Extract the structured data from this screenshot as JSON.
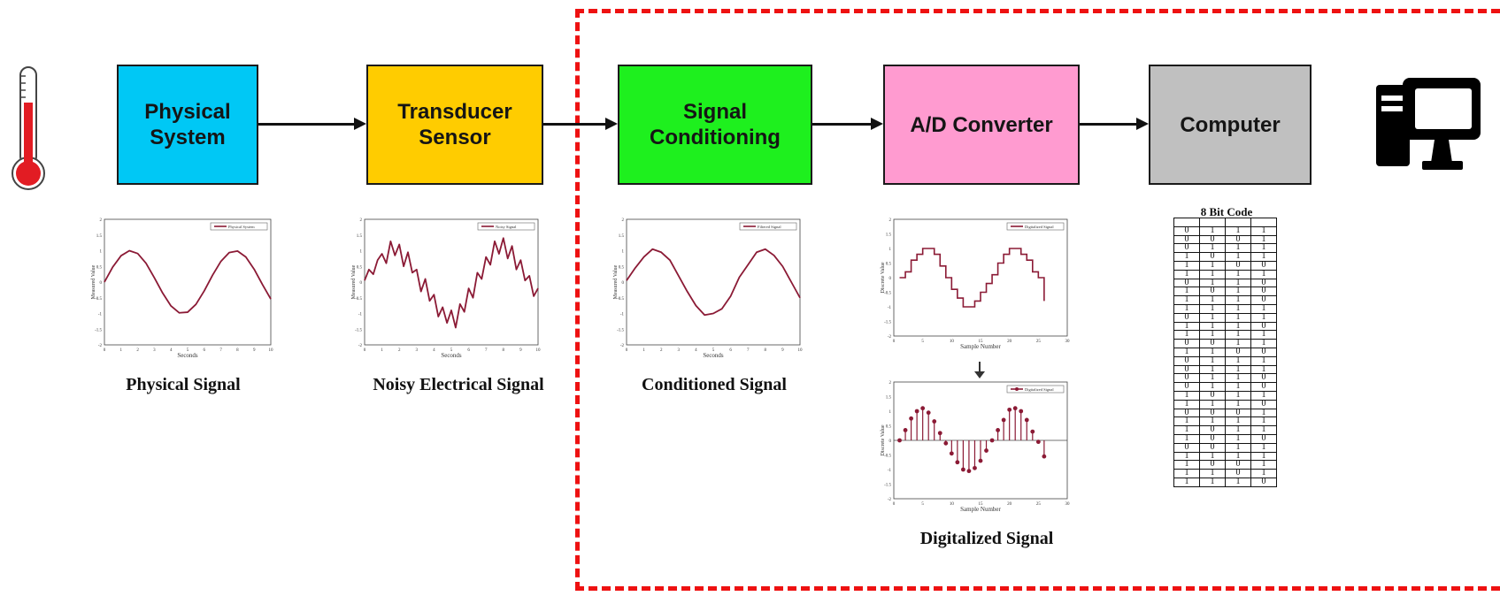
{
  "blocks": {
    "physical_system": "Physical\nSystem",
    "transducer_sensor": "Transducer\nSensor",
    "signal_conditioning": "Signal\nConditioning",
    "ad_converter": "A/D Converter",
    "computer": "Computer"
  },
  "colors": {
    "physical_system": "#00c8f5",
    "transducer_sensor": "#ffcc00",
    "signal_conditioning": "#1ef01e",
    "ad_converter": "#ff9bd0",
    "computer": "#c0c0c0",
    "signal": "#8b1a35",
    "region_border": "#ee1111"
  },
  "captions": {
    "physical": "Physical Signal",
    "noisy": "Noisy Electrical Signal",
    "conditioned": "Conditioned Signal",
    "digitalized": "Digitalized Signal"
  },
  "icons": {
    "left": "thermometer-icon",
    "right": "desktop-computer-icon"
  },
  "chart_data": [
    {
      "type": "line",
      "legend": "Physical System",
      "xlabel": "Seconds",
      "ylabel": "Measured Value",
      "xlim": [
        0,
        10
      ],
      "ylim": [
        -2,
        2
      ],
      "xticks": [
        "0",
        "1",
        "2",
        "3",
        "4",
        "5",
        "6",
        "7",
        "8",
        "9",
        "10"
      ],
      "yticks": [
        "2",
        "1.5",
        "1",
        "0.5",
        "0",
        "-0.5",
        "-1",
        "-1.5",
        "-2"
      ],
      "x": [
        0,
        0.5,
        1,
        1.5,
        2,
        2.5,
        3,
        3.5,
        4,
        4.5,
        5,
        5.5,
        6,
        6.5,
        7,
        7.5,
        8,
        8.5,
        9,
        9.5,
        10
      ],
      "y": [
        0,
        0.48,
        0.84,
        1,
        0.91,
        0.6,
        0.14,
        -0.35,
        -0.76,
        -0.98,
        -0.96,
        -0.71,
        -0.28,
        0.22,
        0.66,
        0.94,
        0.99,
        0.8,
        0.41,
        -0.08,
        -0.54
      ]
    },
    {
      "type": "line",
      "legend": "Noisy Signal",
      "xlabel": "Seconds",
      "ylabel": "Measured Value",
      "xlim": [
        0,
        10
      ],
      "ylim": [
        -2,
        2
      ],
      "xticks": [
        "0",
        "1",
        "2",
        "3",
        "4",
        "5",
        "6",
        "7",
        "8",
        "9",
        "10"
      ],
      "yticks": [
        "2",
        "1.5",
        "1",
        "0.5",
        "0",
        "-0.5",
        "-1",
        "-1.5",
        "-2"
      ],
      "x": [
        0,
        0.25,
        0.5,
        0.75,
        1,
        1.25,
        1.5,
        1.75,
        2,
        2.25,
        2.5,
        2.75,
        3,
        3.25,
        3.5,
        3.75,
        4,
        4.25,
        4.5,
        4.75,
        5,
        5.25,
        5.5,
        5.75,
        6,
        6.25,
        6.5,
        6.75,
        7,
        7.25,
        7.5,
        7.75,
        8,
        8.25,
        8.5,
        8.75,
        9,
        9.25,
        9.5,
        9.75,
        10
      ],
      "y": [
        0.05,
        0.4,
        0.25,
        0.7,
        0.9,
        0.6,
        1.3,
        0.85,
        1.2,
        0.5,
        0.95,
        0.3,
        0.4,
        -0.3,
        0.1,
        -0.6,
        -0.4,
        -1.1,
        -0.8,
        -1.3,
        -0.9,
        -1.45,
        -0.7,
        -0.95,
        -0.2,
        -0.5,
        0.3,
        0.1,
        0.8,
        0.55,
        1.3,
        0.9,
        1.4,
        0.75,
        1.15,
        0.4,
        0.7,
        0.05,
        0.2,
        -0.45,
        -0.2
      ]
    },
    {
      "type": "line",
      "legend": "Filtered Signal",
      "xlabel": "Seconds",
      "ylabel": "Measured Value",
      "xlim": [
        0,
        10
      ],
      "ylim": [
        -2,
        2
      ],
      "xticks": [
        "0",
        "1",
        "2",
        "3",
        "4",
        "5",
        "6",
        "7",
        "8",
        "9",
        "10"
      ],
      "yticks": [
        "2",
        "1.5",
        "1",
        "0.5",
        "0",
        "-0.5",
        "-1",
        "-1.5",
        "-2"
      ],
      "x": [
        0,
        0.5,
        1,
        1.5,
        2,
        2.5,
        3,
        3.5,
        4,
        4.5,
        5,
        5.5,
        6,
        6.5,
        7,
        7.5,
        8,
        8.5,
        9,
        9.5,
        10
      ],
      "y": [
        0.05,
        0.45,
        0.8,
        1.05,
        0.95,
        0.7,
        0.2,
        -0.3,
        -0.75,
        -1.05,
        -1.0,
        -0.85,
        -0.45,
        0.15,
        0.55,
        0.95,
        1.05,
        0.85,
        0.5,
        0.0,
        -0.5
      ]
    },
    {
      "type": "line",
      "legend": "Digitalized Signal",
      "xlabel": "Sample Number",
      "ylabel": "Discrete Value",
      "xlim": [
        0,
        30
      ],
      "ylim": [
        -2,
        2
      ],
      "xticks": [
        "0",
        "5",
        "10",
        "15",
        "20",
        "25",
        "30"
      ],
      "yticks": [
        "2",
        "1.5",
        "1",
        "0.5",
        "0",
        "-0.5",
        "-1",
        "-1.5",
        "-2"
      ],
      "x": [
        1,
        2,
        3,
        4,
        5,
        6,
        7,
        8,
        9,
        10,
        11,
        12,
        13,
        14,
        15,
        16,
        17,
        18,
        19,
        20,
        21,
        22,
        23,
        24,
        25,
        26
      ],
      "y": [
        0,
        0.2,
        0.6,
        0.8,
        1,
        1,
        0.8,
        0.4,
        0,
        -0.4,
        -0.7,
        -1,
        -1,
        -0.8,
        -0.5,
        -0.2,
        0.1,
        0.5,
        0.8,
        1,
        1,
        0.8,
        0.6,
        0.2,
        0,
        -0.8
      ]
    },
    {
      "type": "scatter",
      "legend": "Digitalized Signal",
      "xlabel": "Sample Number",
      "ylabel": "Discrete Value",
      "xlim": [
        0,
        30
      ],
      "ylim": [
        -2,
        2
      ],
      "xticks": [
        "0",
        "5",
        "10",
        "15",
        "20",
        "25",
        "30"
      ],
      "yticks": [
        "2",
        "1.5",
        "1",
        "0.5",
        "0",
        "-0.5",
        "-1",
        "-1.5",
        "-2"
      ],
      "x": [
        1,
        2,
        3,
        4,
        5,
        6,
        7,
        8,
        9,
        10,
        11,
        12,
        13,
        14,
        15,
        16,
        17,
        18,
        19,
        20,
        21,
        22,
        23,
        24,
        25,
        26
      ],
      "y": [
        0,
        0.35,
        0.75,
        1.0,
        1.1,
        0.95,
        0.65,
        0.25,
        -0.1,
        -0.45,
        -0.75,
        -1.0,
        -1.05,
        -0.95,
        -0.7,
        -0.35,
        0.0,
        0.35,
        0.7,
        1.05,
        1.1,
        1.0,
        0.7,
        0.3,
        -0.05,
        -0.55
      ]
    }
  ],
  "bit_table": {
    "title": "8 Bit Code",
    "rows": [
      [
        "0",
        "1",
        "1",
        "1"
      ],
      [
        "0",
        "0",
        "0",
        "1"
      ],
      [
        "0",
        "1",
        "1",
        "1"
      ],
      [
        "1",
        "0",
        "1",
        "1"
      ],
      [
        "1",
        "1",
        "0",
        "0"
      ],
      [
        "1",
        "1",
        "1",
        "1"
      ],
      [
        "0",
        "1",
        "1",
        "0"
      ],
      [
        "1",
        "0",
        "1",
        "0"
      ],
      [
        "1",
        "1",
        "1",
        "0"
      ],
      [
        "1",
        "1",
        "1",
        "1"
      ],
      [
        "0",
        "1",
        "1",
        "1"
      ],
      [
        "1",
        "1",
        "1",
        "0"
      ],
      [
        "1",
        "1",
        "1",
        "1"
      ],
      [
        "0",
        "0",
        "1",
        "1"
      ],
      [
        "1",
        "1",
        "0",
        "0"
      ],
      [
        "0",
        "1",
        "1",
        "1"
      ],
      [
        "0",
        "1",
        "1",
        "1"
      ],
      [
        "0",
        "1",
        "1",
        "0"
      ],
      [
        "0",
        "1",
        "1",
        "0"
      ],
      [
        "1",
        "0",
        "1",
        "1"
      ],
      [
        "1",
        "1",
        "1",
        "0"
      ],
      [
        "0",
        "0",
        "0",
        "1"
      ],
      [
        "1",
        "1",
        "1",
        "1"
      ],
      [
        "1",
        "0",
        "1",
        "1"
      ],
      [
        "1",
        "0",
        "1",
        "0"
      ],
      [
        "0",
        "0",
        "1",
        "1"
      ],
      [
        "1",
        "1",
        "1",
        "1"
      ],
      [
        "1",
        "0",
        "0",
        "1"
      ],
      [
        "1",
        "1",
        "0",
        "1"
      ],
      [
        "1",
        "1",
        "1",
        "0"
      ]
    ]
  }
}
